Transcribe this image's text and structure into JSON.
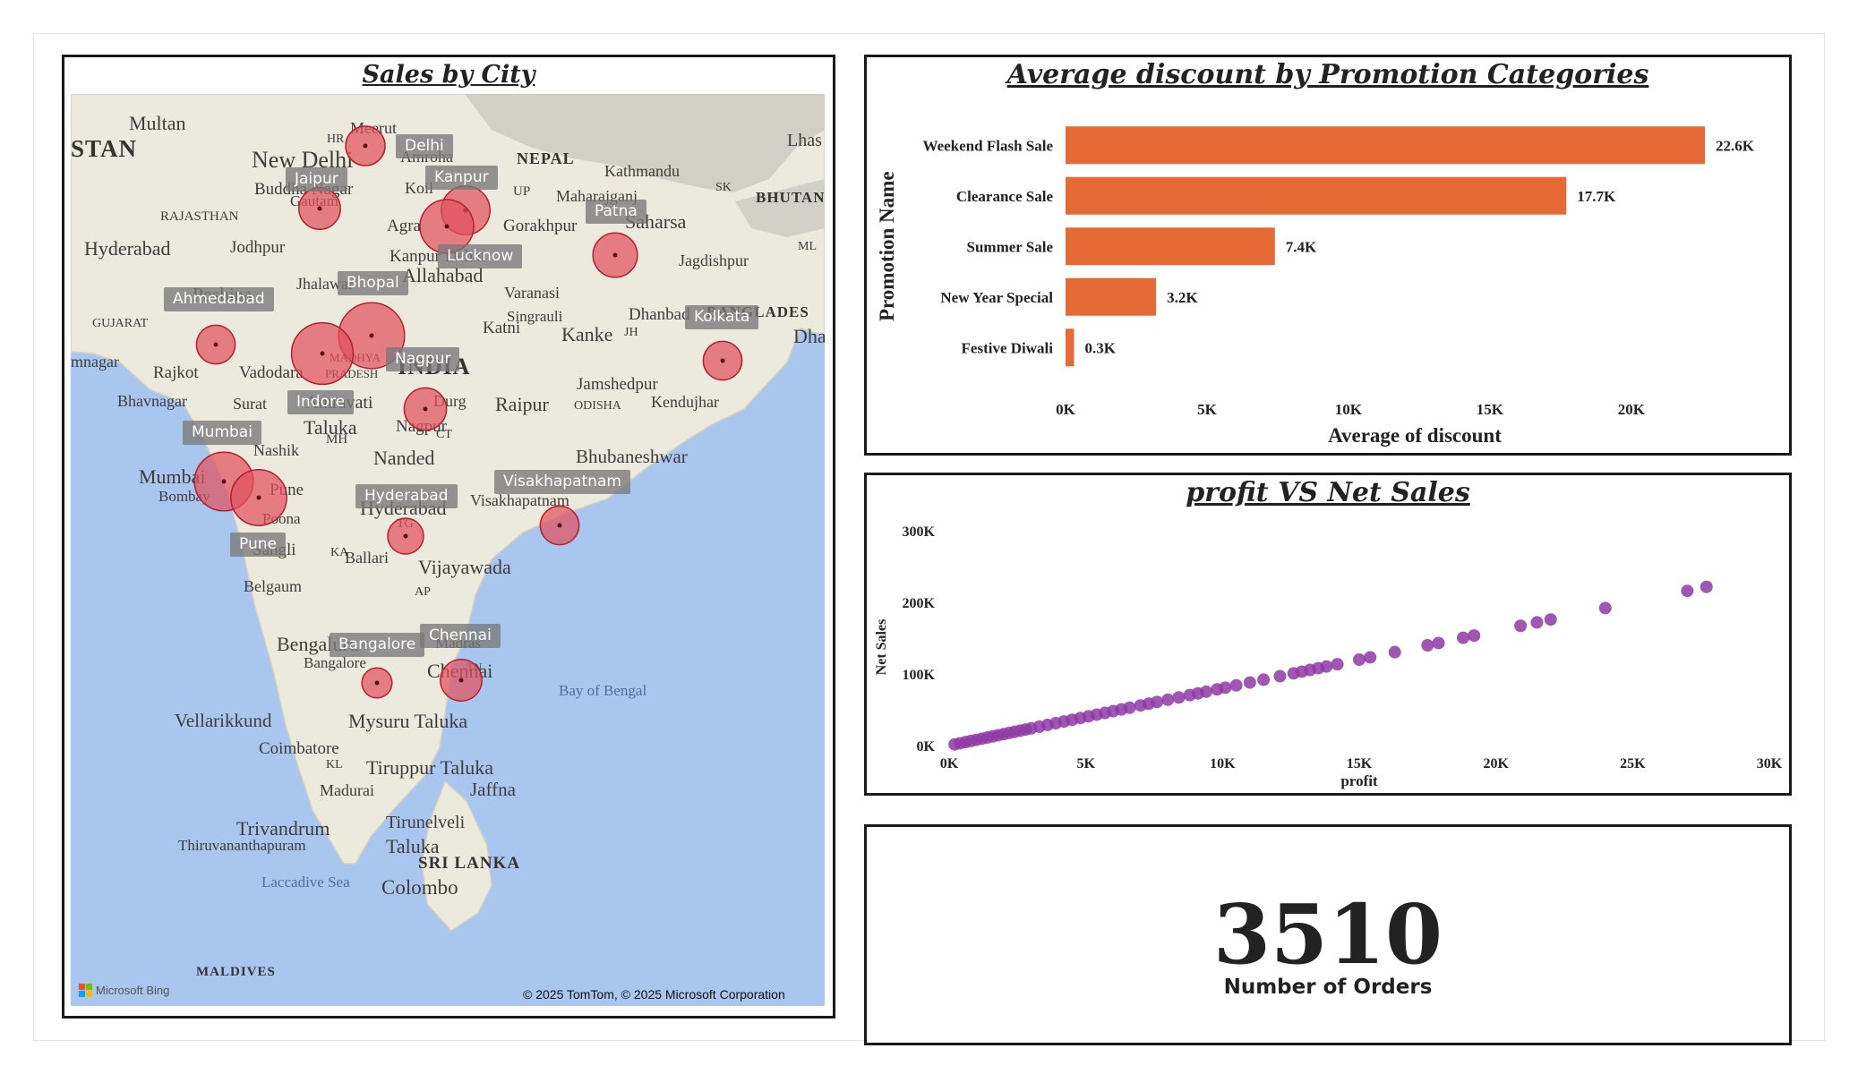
{
  "map": {
    "title": "Sales by City",
    "place_labels": [
      {
        "text": "Multan",
        "size": 22
      },
      {
        "text": "STAN",
        "size": 27,
        "bold": true
      },
      {
        "text": "Meerut",
        "size": 18
      },
      {
        "text": "HR",
        "size": 14
      },
      {
        "text": "New Delhi",
        "size": 26
      },
      {
        "text": "Amroha",
        "size": 18
      },
      {
        "text": "NEPAL",
        "size": 18,
        "bold": true
      },
      {
        "text": "Kathmandu",
        "size": 18
      },
      {
        "text": "Lhas",
        "size": 20
      },
      {
        "text": "Buddha Nagar",
        "size": 19
      },
      {
        "text": "Gautam",
        "size": 17
      },
      {
        "text": "Koil",
        "size": 18
      },
      {
        "text": "UP",
        "size": 15
      },
      {
        "text": "Maharajganj",
        "size": 18
      },
      {
        "text": "SK",
        "size": 14
      },
      {
        "text": "BHUTAN",
        "size": 17,
        "bold": true
      },
      {
        "text": "RAJASTHAN",
        "size": 15
      },
      {
        "text": "Agra",
        "size": 19
      },
      {
        "text": "Gorakhpur",
        "size": 19
      },
      {
        "text": "Saharsa",
        "size": 22
      },
      {
        "text": "Hyderabad",
        "size": 22
      },
      {
        "text": "Jodhpur",
        "size": 19
      },
      {
        "text": "Kanpur Dehat",
        "size": 19
      },
      {
        "text": "Allahabad",
        "size": 22
      },
      {
        "text": "ML",
        "size": 14
      },
      {
        "text": "Jagdishpur",
        "size": 18
      },
      {
        "text": "Poshina",
        "size": 21
      },
      {
        "text": "Jhalawar",
        "size": 18
      },
      {
        "text": "Varanasi",
        "size": 18
      },
      {
        "text": "Singrauli",
        "size": 17
      },
      {
        "text": "Dhanbad",
        "size": 19
      },
      {
        "text": "BANGLADES",
        "size": 17,
        "bold": true
      },
      {
        "text": "GUJARAT",
        "size": 14
      },
      {
        "text": "Katni",
        "size": 19
      },
      {
        "text": "Kanke",
        "size": 22
      },
      {
        "text": "JH",
        "size": 14
      },
      {
        "text": "Dha",
        "size": 22
      },
      {
        "text": "mnagar",
        "size": 18
      },
      {
        "text": "Rajkot",
        "size": 19
      },
      {
        "text": "Vadodara",
        "size": 19
      },
      {
        "text": "MADHYA",
        "size": 13
      },
      {
        "text": "PRADESH",
        "size": 13
      },
      {
        "text": "INDIA",
        "size": 26,
        "bold": true
      },
      {
        "text": "Jamshedpur",
        "size": 19
      },
      {
        "text": "Bhavnagar",
        "size": 18
      },
      {
        "text": "Surat",
        "size": 18
      },
      {
        "text": "Amravati",
        "size": 20
      },
      {
        "text": "Durg",
        "size": 18
      },
      {
        "text": "Raipur",
        "size": 22
      },
      {
        "text": "ODISHA",
        "size": 14
      },
      {
        "text": "Kendujhar",
        "size": 18
      },
      {
        "text": "Taluka",
        "size": 22
      },
      {
        "text": "Nagpur",
        "size": 19
      },
      {
        "text": "MH",
        "size": 15
      },
      {
        "text": "CT",
        "size": 14
      },
      {
        "text": "Nashik",
        "size": 18
      },
      {
        "text": "Nanded",
        "size": 22
      },
      {
        "text": "Bhubaneshwar",
        "size": 21
      },
      {
        "text": "Mumbai",
        "size": 22
      },
      {
        "text": "Bombay",
        "size": 17
      },
      {
        "text": "Pune",
        "size": 19
      },
      {
        "text": "Hyderabad",
        "size": 22
      },
      {
        "text": "Visakhapatnam",
        "size": 18
      },
      {
        "text": "Poona",
        "size": 17
      },
      {
        "text": "TG",
        "size": 14
      },
      {
        "text": "Sangli",
        "size": 19
      },
      {
        "text": "KA",
        "size": 14
      },
      {
        "text": "Ballari",
        "size": 18
      },
      {
        "text": "Vijayawada",
        "size": 22
      },
      {
        "text": "Belgaum",
        "size": 18
      },
      {
        "text": "AP",
        "size": 14
      },
      {
        "text": "Bengaluru",
        "size": 22
      },
      {
        "text": "Madras",
        "size": 17
      },
      {
        "text": "Chennai",
        "size": 22
      },
      {
        "text": "Bangalore",
        "size": 17
      },
      {
        "text": "TN",
        "size": 13
      },
      {
        "text": "Bay of Bengal",
        "size": 17,
        "water": true
      },
      {
        "text": "Vellarikkund",
        "size": 21
      },
      {
        "text": "Mysuru Taluka",
        "size": 22
      },
      {
        "text": "Coimbatore",
        "size": 19
      },
      {
        "text": "KL",
        "size": 14
      },
      {
        "text": "Tiruppur Taluka",
        "size": 22
      },
      {
        "text": "Jaffna",
        "size": 21
      },
      {
        "text": "Madurai",
        "size": 18
      },
      {
        "text": "Trivandrum",
        "size": 22
      },
      {
        "text": "Tirunelveli",
        "size": 20
      },
      {
        "text": "Thiruvananthapuram",
        "size": 17
      },
      {
        "text": "Taluka",
        "size": 22
      },
      {
        "text": "SRI LANKA",
        "size": 19,
        "bold": true
      },
      {
        "text": "Laccadive Sea",
        "size": 17,
        "water": true
      },
      {
        "text": "Colombo",
        "size": 23
      },
      {
        "text": "MALDIVES",
        "size": 15,
        "bold": true
      }
    ],
    "city_bubbles": [
      {
        "city": "Delhi",
        "label": "Delhi",
        "sales_level": 0.35
      },
      {
        "city": "Jaipur",
        "label": "Jaipur",
        "sales_level": 0.38
      },
      {
        "city": "Kanpur",
        "label": "Kanpur",
        "sales_level": 0.48
      },
      {
        "city": "Lucknow",
        "label": "Lucknow",
        "sales_level": 0.55
      },
      {
        "city": "Patna",
        "label": "Patna",
        "sales_level": 0.42
      },
      {
        "city": "Bhopal",
        "label": "Bhopal",
        "sales_level": 0.72
      },
      {
        "city": "Ahmedabad",
        "label": "Ahmedabad",
        "sales_level": 0.34
      },
      {
        "city": "Kolkata",
        "label": "Kolkata",
        "sales_level": 0.34
      },
      {
        "city": "Indore",
        "label": "Indore",
        "sales_level": 0.66
      },
      {
        "city": "Nagpur",
        "label": "Nagpur",
        "sales_level": 0.39
      },
      {
        "city": "Mumbai",
        "label": "Mumbai",
        "sales_level": 0.62
      },
      {
        "city": "Pune",
        "label": "Pune",
        "sales_level": 0.58
      },
      {
        "city": "Hyderabad",
        "label": "Hyderabad",
        "sales_level": 0.3
      },
      {
        "city": "Visakhapatnam",
        "label": "Visakhapatnam",
        "sales_level": 0.34
      },
      {
        "city": "Bangalore",
        "label": "Bangalore",
        "sales_level": 0.22
      },
      {
        "city": "Chennai",
        "label": "Chennai",
        "sales_level": 0.38
      }
    ],
    "credit_left": "Microsoft Bing",
    "credit_right": "© 2025 TomTom, © 2025 Microsoft Corporation",
    "colors": {
      "bubble_fill": "#e0525e",
      "bubble_stroke": "#b3202e",
      "water": "#a9c6ef",
      "land": "#ece9dd",
      "mountain": "#c9c6bd"
    }
  },
  "discount_chart": {
    "title": "Average discount by Promotion Categories",
    "color": "#e66a36"
  },
  "scatter_chart": {
    "title": "profit VS Net Sales",
    "color": "#8e3aa6"
  },
  "kpi": {
    "value": "3510",
    "label": "Number of Orders"
  },
  "chart_data": [
    {
      "type": "bar",
      "orientation": "horizontal",
      "title": "Average discount by Promotion Categories",
      "categories": [
        "Weekend Flash Sale",
        "Clearance Sale",
        "Summer Sale",
        "New Year Special",
        "Festive Diwali"
      ],
      "values": [
        22600,
        17700,
        7400,
        3200,
        300
      ],
      "data_labels": [
        "22.6K",
        "17.7K",
        "7.4K",
        "3.2K",
        "0.3K"
      ],
      "xlabel": "Average of discount",
      "ylabel": "Promotion Name",
      "xlim": [
        0,
        22600
      ],
      "xticks": [
        0,
        5000,
        10000,
        15000,
        20000
      ],
      "xtick_labels": [
        "0K",
        "5K",
        "10K",
        "15K",
        "20K"
      ],
      "grid": false,
      "legend": "none"
    },
    {
      "type": "scatter",
      "title": "profit VS Net Sales",
      "xlabel": "profit",
      "ylabel": "Net Sales",
      "xlim": [
        0,
        30000
      ],
      "ylim": [
        0,
        300000
      ],
      "xticks": [
        0,
        5000,
        10000,
        15000,
        20000,
        25000,
        30000
      ],
      "xtick_labels": [
        "0K",
        "5K",
        "10K",
        "15K",
        "20K",
        "25K",
        "30K"
      ],
      "yticks": [
        0,
        100000,
        200000,
        300000
      ],
      "ytick_labels": [
        "0K",
        "100K",
        "200K",
        "300K"
      ],
      "grid": false,
      "legend": "none",
      "series": [
        {
          "x": [
            200,
            400,
            600,
            800,
            1000,
            1200,
            1400,
            1600,
            1800,
            2000,
            2200,
            2400,
            2600,
            2800,
            3000,
            3300,
            3600,
            3900,
            4200,
            4500,
            4800,
            5100,
            5400,
            5700,
            6000,
            6300,
            6600,
            7000,
            7300,
            7600,
            8000,
            8400,
            8800,
            9100,
            9400,
            9800,
            10100,
            10500,
            11000,
            11500,
            12100,
            12600,
            12900,
            13200,
            13500,
            13800,
            14200,
            15000,
            15400,
            16300,
            17500,
            17900,
            18800,
            19200,
            20900,
            21500,
            22000,
            24000,
            27000,
            27700
          ],
          "y": [
            1600,
            3200,
            4800,
            6400,
            8000,
            9600,
            11200,
            12800,
            14400,
            16000,
            17600,
            19200,
            20800,
            22400,
            24000,
            26400,
            28800,
            31200,
            33600,
            36000,
            38400,
            40800,
            43200,
            45600,
            48000,
            50400,
            52800,
            56000,
            58400,
            60800,
            64000,
            67200,
            70400,
            72800,
            75200,
            78400,
            80800,
            84000,
            88000,
            92000,
            96800,
            100800,
            103200,
            105600,
            108000,
            110400,
            113600,
            120000,
            123200,
            130400,
            140000,
            143200,
            150400,
            153600,
            167200,
            172000,
            176000,
            192000,
            216000,
            221600
          ]
        }
      ]
    }
  ]
}
